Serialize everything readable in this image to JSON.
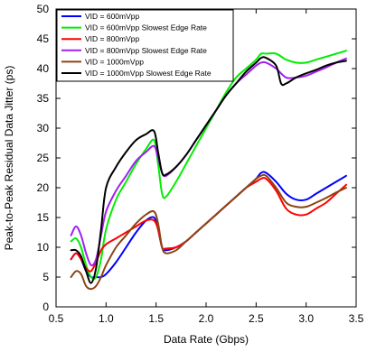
{
  "chart_data": {
    "type": "line",
    "title": "",
    "xlabel": "Data Rate (Gbps)",
    "ylabel": "Peak-to-Peak Residual Data Jitter (ps)",
    "xlim": [
      0.5,
      3.5
    ],
    "ylim": [
      0,
      50
    ],
    "xticks": [
      "0.5",
      "1.0",
      "1.5",
      "2.0",
      "2.5",
      "3.0",
      "3.5"
    ],
    "yticks": [
      "0",
      "5",
      "10",
      "15",
      "20",
      "25",
      "30",
      "35",
      "40",
      "45",
      "50"
    ],
    "grid": false,
    "legend_position": "top-left",
    "series": [
      {
        "name": "VID = 600mVpp",
        "color": "#0000ff",
        "x": [
          0.65,
          0.7,
          0.75,
          0.8,
          0.85,
          0.9,
          0.95,
          1.0,
          1.1,
          1.2,
          1.3,
          1.4,
          1.48,
          1.52,
          1.56,
          1.6,
          1.7,
          1.8,
          1.9,
          2.0,
          2.1,
          2.2,
          2.3,
          2.4,
          2.5,
          2.55,
          2.6,
          2.7,
          2.8,
          2.9,
          3.0,
          3.1,
          3.2,
          3.3,
          3.4
        ],
        "y": [
          8.0,
          9.0,
          8.0,
          6.0,
          5.0,
          5.0,
          5.0,
          5.5,
          7.5,
          10.0,
          12.5,
          14.5,
          15.0,
          13.0,
          10.0,
          9.5,
          10.0,
          11.0,
          12.5,
          14.0,
          15.5,
          17.0,
          18.5,
          20.0,
          21.5,
          22.5,
          22.5,
          21.0,
          19.0,
          18.0,
          18.0,
          19.0,
          20.0,
          21.0,
          22.0
        ]
      },
      {
        "name": "VID = 600mVpp Slowest Edge Rate",
        "color": "#00ee00",
        "x": [
          0.65,
          0.7,
          0.75,
          0.8,
          0.85,
          0.9,
          0.95,
          1.0,
          1.1,
          1.2,
          1.3,
          1.4,
          1.48,
          1.52,
          1.56,
          1.6,
          1.7,
          1.8,
          1.9,
          2.0,
          2.1,
          2.2,
          2.3,
          2.4,
          2.5,
          2.55,
          2.6,
          2.7,
          2.8,
          2.9,
          3.0,
          3.1,
          3.2,
          3.3,
          3.4
        ],
        "y": [
          11.0,
          11.5,
          10.0,
          7.0,
          5.0,
          5.0,
          8.0,
          13.0,
          18.0,
          21.0,
          24.0,
          26.5,
          28.0,
          24.0,
          19.0,
          18.5,
          21.0,
          24.0,
          27.0,
          30.0,
          33.0,
          36.0,
          38.5,
          40.0,
          41.5,
          42.5,
          42.5,
          42.5,
          41.5,
          41.0,
          41.0,
          41.5,
          42.0,
          42.5,
          43.0
        ]
      },
      {
        "name": "VID = 800mVpp",
        "color": "#ff0000",
        "x": [
          0.65,
          0.7,
          0.75,
          0.8,
          0.85,
          0.9,
          0.95,
          1.0,
          1.1,
          1.2,
          1.3,
          1.4,
          1.48,
          1.52,
          1.56,
          1.6,
          1.7,
          1.8,
          1.9,
          2.0,
          2.1,
          2.2,
          2.3,
          2.4,
          2.5,
          2.55,
          2.6,
          2.7,
          2.8,
          2.9,
          3.0,
          3.1,
          3.2,
          3.3,
          3.4
        ],
        "y": [
          8.0,
          9.0,
          8.0,
          6.5,
          6.0,
          7.5,
          9.5,
          10.5,
          11.5,
          12.5,
          13.5,
          14.5,
          14.5,
          13.0,
          10.0,
          9.8,
          10.0,
          11.0,
          12.5,
          14.0,
          15.5,
          17.0,
          18.5,
          20.0,
          21.0,
          21.5,
          21.5,
          19.5,
          16.5,
          15.5,
          15.5,
          16.5,
          17.5,
          19.0,
          20.5
        ]
      },
      {
        "name": "VID = 800mVpp Slowest Edge Rate",
        "color": "#a020f0",
        "x": [
          0.65,
          0.7,
          0.75,
          0.8,
          0.85,
          0.9,
          0.95,
          1.0,
          1.1,
          1.2,
          1.3,
          1.4,
          1.48,
          1.52,
          1.56,
          1.6,
          1.7,
          1.8,
          1.9,
          2.0,
          2.1,
          2.2,
          2.3,
          2.4,
          2.5,
          2.55,
          2.6,
          2.7,
          2.8,
          2.9,
          3.0,
          3.1,
          3.2,
          3.3,
          3.4
        ],
        "y": [
          12.0,
          13.5,
          12.0,
          9.0,
          7.0,
          8.0,
          12.0,
          16.0,
          19.5,
          22.0,
          24.5,
          26.0,
          27.0,
          25.0,
          22.5,
          22.0,
          23.5,
          25.5,
          28.0,
          30.5,
          33.0,
          35.5,
          37.5,
          39.0,
          40.5,
          41.0,
          41.0,
          40.0,
          38.5,
          38.5,
          38.8,
          39.5,
          40.2,
          41.0,
          41.7
        ]
      },
      {
        "name": "VID = 1000mVpp",
        "color": "#8b4513",
        "x": [
          0.65,
          0.7,
          0.75,
          0.8,
          0.85,
          0.9,
          0.95,
          1.0,
          1.1,
          1.2,
          1.3,
          1.4,
          1.48,
          1.52,
          1.56,
          1.6,
          1.7,
          1.8,
          1.9,
          2.0,
          2.1,
          2.2,
          2.3,
          2.4,
          2.5,
          2.55,
          2.6,
          2.7,
          2.8,
          2.9,
          3.0,
          3.1,
          3.2,
          3.3,
          3.4
        ],
        "y": [
          5.0,
          6.0,
          5.5,
          3.5,
          3.0,
          3.5,
          5.0,
          7.0,
          10.0,
          12.0,
          14.0,
          15.5,
          16.0,
          14.0,
          10.0,
          9.0,
          9.5,
          11.0,
          12.5,
          14.0,
          15.5,
          17.0,
          18.5,
          20.0,
          21.5,
          22.0,
          22.0,
          20.0,
          17.5,
          16.8,
          16.8,
          17.5,
          18.3,
          19.2,
          20.0
        ]
      },
      {
        "name": "VID = 1000mVpp Slowest Edge Rate",
        "color": "#000000",
        "x": [
          0.65,
          0.7,
          0.75,
          0.8,
          0.85,
          0.9,
          0.95,
          1.0,
          1.1,
          1.2,
          1.3,
          1.4,
          1.48,
          1.52,
          1.56,
          1.6,
          1.7,
          1.8,
          1.9,
          2.0,
          2.1,
          2.2,
          2.3,
          2.4,
          2.5,
          2.55,
          2.6,
          2.7,
          2.75,
          2.8,
          2.9,
          3.0,
          3.1,
          3.2,
          3.3,
          3.4
        ],
        "y": [
          9.5,
          9.5,
          8.5,
          6.0,
          4.0,
          6.5,
          13.0,
          20.0,
          23.5,
          26.0,
          28.0,
          29.0,
          29.5,
          26.0,
          22.5,
          22.2,
          23.5,
          25.5,
          28.0,
          30.5,
          33.0,
          35.5,
          37.5,
          39.5,
          41.0,
          41.8,
          41.8,
          40.5,
          37.5,
          37.5,
          38.5,
          39.2,
          39.8,
          40.5,
          41.0,
          41.3
        ]
      }
    ]
  }
}
